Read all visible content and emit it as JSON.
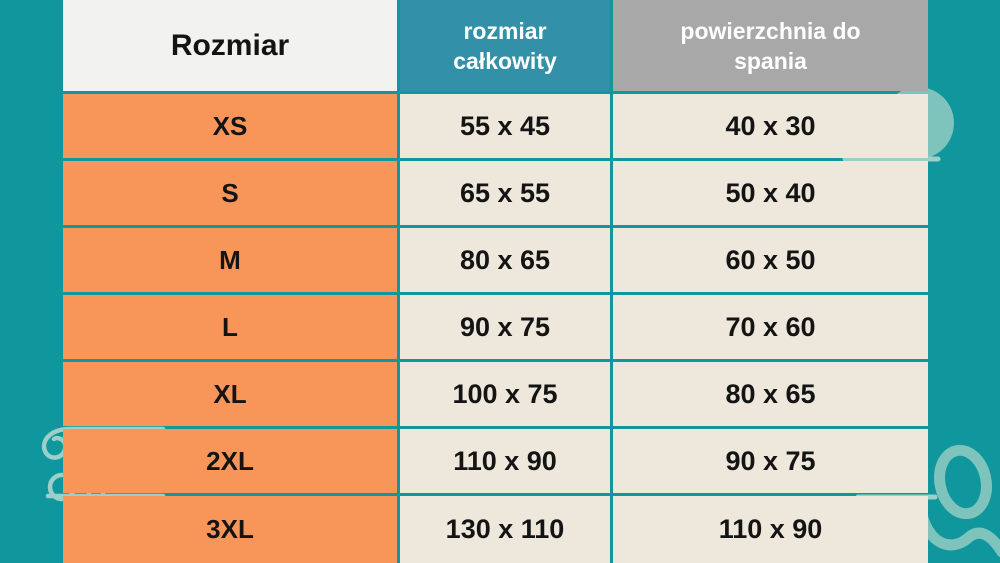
{
  "table": {
    "header": {
      "size_label": "Rozmiar",
      "total_size_label": "rozmiar\ncałkowity",
      "sleeping_area_label": "powierzchnia do\nspania"
    },
    "rows": [
      {
        "size": "XS",
        "total": "55 x 45",
        "sleeping": "40 x 30"
      },
      {
        "size": "S",
        "total": "65 x 55",
        "sleeping": "50 x 40"
      },
      {
        "size": "M",
        "total": "80 x 65",
        "sleeping": "60 x 50"
      },
      {
        "size": "L",
        "total": "90 x 75",
        "sleeping": "70 x 60"
      },
      {
        "size": "XL",
        "total": "100 x 75",
        "sleeping": "80 x 65"
      },
      {
        "size": "2XL",
        "total": "110 x 90",
        "sleeping": "90 x 75"
      },
      {
        "size": "3XL",
        "total": "130 x 110",
        "sleeping": "110 x 90"
      }
    ]
  },
  "chart_data": {
    "type": "table",
    "title": "Rozmiar",
    "columns": [
      "Rozmiar",
      "rozmiar całkowity",
      "powierzchnia do spania"
    ],
    "rows": [
      [
        "XS",
        "55 x 45",
        "40 x 30"
      ],
      [
        "S",
        "65 x 55",
        "50 x 40"
      ],
      [
        "M",
        "80 x 65",
        "60 x 50"
      ],
      [
        "L",
        "90 x 75",
        "70 x 60"
      ],
      [
        "XL",
        "100 x 75",
        "80 x 65"
      ],
      [
        "2XL",
        "110 x 90",
        "90 x 75"
      ],
      [
        "3XL",
        "130 x 110",
        "110 x 90"
      ]
    ]
  },
  "colors": {
    "background": "#10979D",
    "header_teal": "#3390A9",
    "header_gray": "#A8A8A8",
    "header_white": "#F2F3F1",
    "row_label_orange": "#F8965A",
    "cell_cream": "#EDE8DB",
    "text_dark": "#141414",
    "text_light": "#FFFFFF",
    "doodle_teal": "#7FC4BC"
  }
}
